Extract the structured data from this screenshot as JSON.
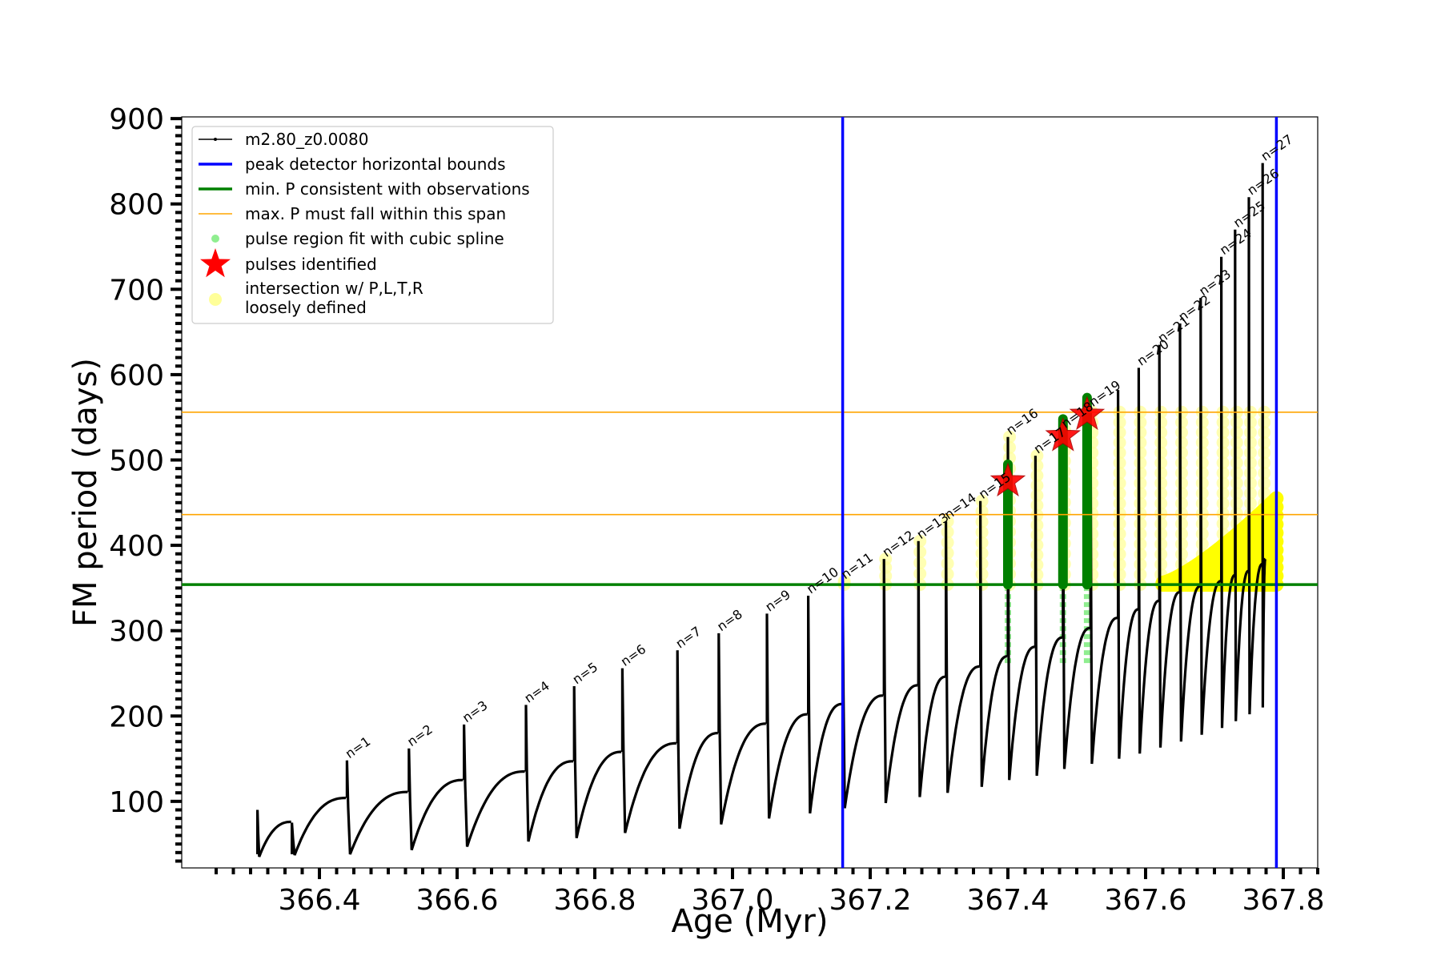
{
  "chart_data": {
    "type": "line",
    "xlabel": "Age (Myr)",
    "ylabel": "FM period (days)",
    "xlim": [
      366.2,
      367.85
    ],
    "ylim": [
      22,
      902
    ],
    "xticks": [
      366.4,
      366.6,
      366.8,
      367.0,
      367.2,
      367.4,
      367.6,
      367.8
    ],
    "xtick_labels": [
      "366.4",
      "366.6",
      "366.8",
      "367.0",
      "367.2",
      "367.4",
      "367.6",
      "367.8"
    ],
    "yticks": [
      100,
      200,
      300,
      400,
      500,
      600,
      700,
      800,
      900
    ],
    "ytick_labels": [
      "100",
      "200",
      "300",
      "400",
      "500",
      "600",
      "700",
      "800",
      "900"
    ],
    "grid": false,
    "legend_placement": "top-left",
    "legend": [
      {
        "label": "m2.80_z0.0080",
        "kind": "line-dot",
        "color": "#000000"
      },
      {
        "label": "peak detector horizontal bounds",
        "kind": "line",
        "color": "#0000ff"
      },
      {
        "label": "min. P consistent with observations",
        "kind": "line",
        "color": "#008000"
      },
      {
        "label": "max. P must fall within this span",
        "kind": "thin-line",
        "color": "#ffa500"
      },
      {
        "label": "pulse region fit with cubic spline",
        "kind": "dot",
        "color": "#90ee90"
      },
      {
        "label": "pulses identified",
        "kind": "star",
        "color": "#ff0000"
      },
      {
        "label": "intersection w/ P,L,T,R",
        "label2": "loosely defined",
        "kind": "big-dot",
        "color": "#ffff99"
      }
    ],
    "vertical_lines": [
      {
        "x": 367.16,
        "color": "#0000ff"
      },
      {
        "x": 367.79,
        "color": "#0000ff"
      }
    ],
    "horizontal_lines": [
      {
        "y": 354,
        "color": "#008000"
      },
      {
        "y": 436,
        "color": "#ffa500"
      },
      {
        "y": 556,
        "color": "#ffa500"
      }
    ],
    "series": [
      {
        "name": "m2.80_z0.0080",
        "color": "#000000",
        "pulses": [
          {
            "n": "",
            "x": 366.31,
            "peak": 90,
            "start": 38,
            "end": 76,
            "min": 35
          },
          {
            "n": "",
            "x": 366.36,
            "peak": 75,
            "start": 38,
            "end": 104,
            "min": 37
          },
          {
            "n": "n=1",
            "x": 366.44,
            "peak": 148,
            "start": 104,
            "end": 111,
            "min": 38
          },
          {
            "n": "n=2",
            "x": 366.53,
            "peak": 162,
            "start": 111,
            "end": 125,
            "min": 43
          },
          {
            "n": "n=3",
            "x": 366.61,
            "peak": 190,
            "start": 125,
            "end": 135,
            "min": 47
          },
          {
            "n": "n=4",
            "x": 366.7,
            "peak": 213,
            "start": 135,
            "end": 147,
            "min": 53
          },
          {
            "n": "n=5",
            "x": 366.77,
            "peak": 235,
            "start": 147,
            "end": 158,
            "min": 57
          },
          {
            "n": "n=6",
            "x": 366.84,
            "peak": 256,
            "start": 158,
            "end": 168,
            "min": 63
          },
          {
            "n": "n=7",
            "x": 366.92,
            "peak": 277,
            "start": 168,
            "end": 180,
            "min": 68
          },
          {
            "n": "n=8",
            "x": 366.98,
            "peak": 297,
            "start": 180,
            "end": 191,
            "min": 73
          },
          {
            "n": "n=9",
            "x": 367.05,
            "peak": 320,
            "start": 191,
            "end": 202,
            "min": 80
          },
          {
            "n": "n=10",
            "x": 367.11,
            "peak": 341,
            "start": 202,
            "end": 214,
            "min": 86
          },
          {
            "n": "n=11",
            "x": 367.16,
            "peak": 358,
            "start": 214,
            "end": 224,
            "min": 92
          },
          {
            "n": "n=12",
            "x": 367.22,
            "peak": 384,
            "start": 224,
            "end": 236,
            "min": 98
          },
          {
            "n": "n=13",
            "x": 367.27,
            "peak": 405,
            "start": 236,
            "end": 246,
            "min": 105
          },
          {
            "n": "n=14",
            "x": 367.31,
            "peak": 428,
            "start": 246,
            "end": 258,
            "min": 110
          },
          {
            "n": "n=15",
            "x": 367.36,
            "peak": 452,
            "start": 258,
            "end": 270,
            "min": 117
          },
          {
            "n": "n=16",
            "x": 367.4,
            "peak": 527,
            "start": 270,
            "end": 281,
            "min": 125
          },
          {
            "n": "n=17",
            "x": 367.44,
            "peak": 505,
            "start": 281,
            "end": 292,
            "min": 130
          },
          {
            "n": "n=18",
            "x": 367.48,
            "peak": 535,
            "start": 292,
            "end": 303,
            "min": 138
          },
          {
            "n": "n=19",
            "x": 367.52,
            "peak": 560,
            "start": 303,
            "end": 315,
            "min": 144
          },
          {
            "n": "",
            "x": 367.56,
            "peak": 582,
            "start": 315,
            "end": 325,
            "min": 150
          },
          {
            "n": "n=20",
            "x": 367.59,
            "peak": 608,
            "start": 325,
            "end": 335,
            "min": 156
          },
          {
            "n": "n=21",
            "x": 367.62,
            "peak": 635,
            "start": 335,
            "end": 345,
            "min": 163
          },
          {
            "n": "n=22",
            "x": 367.65,
            "peak": 660,
            "start": 345,
            "end": 352,
            "min": 170
          },
          {
            "n": "n=23",
            "x": 367.68,
            "peak": 690,
            "start": 352,
            "end": 358,
            "min": 178
          },
          {
            "n": "n=24",
            "x": 367.71,
            "peak": 738,
            "start": 358,
            "end": 365,
            "min": 186
          },
          {
            "n": "n=25",
            "x": 367.73,
            "peak": 770,
            "start": 365,
            "end": 370,
            "min": 194
          },
          {
            "n": "n=26",
            "x": 367.75,
            "peak": 808,
            "start": 370,
            "end": 378,
            "min": 202
          },
          {
            "n": "n=27",
            "x": 367.77,
            "peak": 848,
            "start": 378,
            "end": 384,
            "min": 210
          }
        ]
      },
      {
        "name": "pulses identified",
        "color": "#ff0000",
        "points": [
          {
            "x": 367.4,
            "y": 475
          },
          {
            "x": 367.48,
            "y": 528
          },
          {
            "x": 367.515,
            "y": 553
          }
        ]
      }
    ]
  }
}
